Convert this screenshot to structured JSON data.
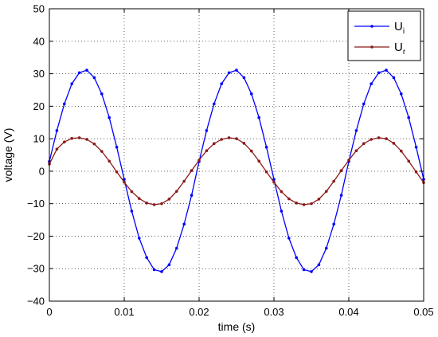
{
  "chart_data": {
    "type": "line",
    "title": "",
    "xlabel": "time (s)",
    "ylabel": "voltage (V)",
    "xlim": [
      0,
      0.05
    ],
    "ylim": [
      -40,
      50
    ],
    "xticks": [
      0,
      0.01,
      0.02,
      0.03,
      0.04,
      0.05
    ],
    "xtick_labels": [
      "0",
      "0.01",
      "0.02",
      "0.03",
      "0.04",
      "0.05"
    ],
    "yticks": [
      -40,
      -30,
      -20,
      -10,
      0,
      10,
      20,
      30,
      40,
      50
    ],
    "ytick_labels": [
      "−40",
      "−30",
      "−20",
      "−10",
      "0",
      "10",
      "20",
      "30",
      "40",
      "50"
    ],
    "grid": true,
    "legend_position": "top-right",
    "x": [
      0,
      0.001,
      0.002,
      0.003,
      0.004,
      0.005,
      0.006,
      0.007,
      0.008,
      0.009,
      0.01,
      0.011,
      0.012,
      0.013,
      0.014,
      0.015,
      0.016,
      0.017,
      0.018,
      0.019,
      0.02,
      0.021,
      0.022,
      0.023,
      0.024,
      0.025,
      0.026,
      0.027,
      0.028,
      0.029,
      0.03,
      0.031,
      0.032,
      0.033,
      0.034,
      0.035,
      0.036,
      0.037,
      0.038,
      0.039,
      0.04,
      0.041,
      0.042,
      0.043,
      0.044,
      0.045,
      0.046,
      0.047,
      0.048,
      0.049,
      0.05
    ],
    "series": [
      {
        "name": "U",
        "subscript": "i",
        "color": "#0000ff",
        "values": [
          3.0,
          12.5,
          20.7,
          26.9,
          30.3,
          31.1,
          28.8,
          23.8,
          16.5,
          7.4,
          -2.5,
          -12.3,
          -20.6,
          -26.6,
          -30.3,
          -30.9,
          -28.8,
          -23.7,
          -16.3,
          -7.4,
          3.0,
          12.5,
          20.7,
          26.9,
          30.3,
          31.1,
          28.8,
          23.8,
          16.5,
          7.4,
          -2.5,
          -12.3,
          -20.6,
          -26.6,
          -30.3,
          -30.9,
          -28.8,
          -23.7,
          -16.3,
          -7.4,
          3.0,
          12.5,
          20.7,
          26.9,
          30.3,
          31.1,
          28.8,
          23.8,
          16.5,
          7.4,
          -2.5
        ]
      },
      {
        "name": "U",
        "subscript": "r",
        "color": "#8b1a1a",
        "values": [
          2.2,
          6.8,
          9.0,
          10.1,
          10.3,
          9.8,
          8.4,
          6.1,
          3.1,
          -0.2,
          -3.4,
          -6.3,
          -8.4,
          -9.8,
          -10.3,
          -10.0,
          -8.6,
          -6.2,
          -3.1,
          0.2,
          3.4,
          6.3,
          8.5,
          9.8,
          10.3,
          10.0,
          8.6,
          6.2,
          3.1,
          -0.2,
          -3.4,
          -6.3,
          -8.5,
          -9.8,
          -10.3,
          -10.0,
          -8.6,
          -6.2,
          -3.1,
          0.2,
          3.4,
          6.3,
          8.5,
          9.8,
          10.3,
          10.0,
          8.6,
          6.2,
          3.1,
          -0.2,
          -3.5
        ]
      }
    ]
  }
}
